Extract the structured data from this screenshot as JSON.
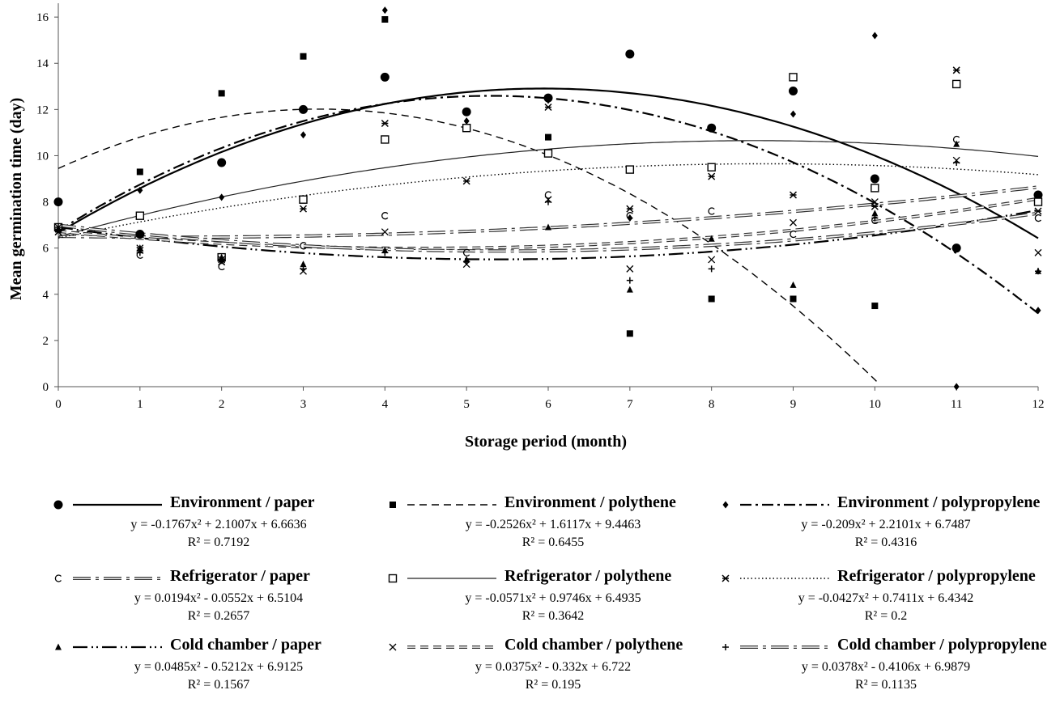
{
  "chart_data": {
    "type": "scatter",
    "xlabel": "Storage period (month)",
    "ylabel": "Mean germination time (day)",
    "xlim": [
      0,
      12
    ],
    "ylim": [
      0,
      16.6
    ],
    "x_ticks": [
      "0",
      "1",
      "2",
      "3",
      "4",
      "5",
      "6",
      "7",
      "8",
      "9",
      "10",
      "11",
      "12"
    ],
    "y_ticks": [
      "0",
      "2",
      "4",
      "6",
      "8",
      "10",
      "12",
      "14",
      "16"
    ],
    "grid": false,
    "legend_position": "bottom",
    "series": [
      {
        "name": "Environment / paper",
        "marker": "circle",
        "line": "solid",
        "lineWeight": "heavy",
        "points": [
          [
            0,
            8.0
          ],
          [
            1,
            6.6
          ],
          [
            2,
            9.7
          ],
          [
            3,
            12.0
          ],
          [
            4,
            13.4
          ],
          [
            5,
            11.9
          ],
          [
            6,
            12.5
          ],
          [
            7,
            14.4
          ],
          [
            8,
            11.2
          ],
          [
            9,
            12.8
          ],
          [
            10,
            9.0
          ],
          [
            11,
            6.0
          ],
          [
            12,
            8.3
          ]
        ],
        "equation": "y = -0.1767x² + 2.1007x + 6.6636",
        "r2": "R² = 0.7192",
        "coef": [
          -0.1767,
          2.1007,
          6.6636
        ]
      },
      {
        "name": "Environment / polythene",
        "marker": "square-filled",
        "line": "dashed",
        "points": [
          [
            0,
            8.0
          ],
          [
            1,
            9.3
          ],
          [
            2,
            12.7
          ],
          [
            3,
            14.3
          ],
          [
            4,
            15.9
          ],
          [
            5,
            11.2
          ],
          [
            6,
            10.8
          ],
          [
            7,
            2.3
          ],
          [
            8,
            3.8
          ],
          [
            9,
            3.8
          ],
          [
            10,
            3.5
          ]
        ],
        "equation": "y = -0.2526x² + 1.6117x + 9.4463",
        "r2": "R² = 0.6455",
        "coef": [
          -0.2526,
          1.6117,
          9.4463
        ]
      },
      {
        "name": "Environment / polypropylene",
        "marker": "diamond",
        "line": "dash-dot",
        "lineWeight": "heavy",
        "points": [
          [
            0,
            6.9
          ],
          [
            1,
            8.5
          ],
          [
            2,
            8.2
          ],
          [
            3,
            10.9
          ],
          [
            4,
            16.3
          ],
          [
            5,
            11.5
          ],
          [
            6,
            12.4
          ],
          [
            7,
            7.3
          ],
          [
            8,
            11.2
          ],
          [
            9,
            11.8
          ],
          [
            10,
            15.2
          ],
          [
            11,
            0.0
          ],
          [
            12,
            3.3
          ]
        ],
        "equation": "y = -0.209x² + 2.2101x + 6.7487",
        "r2": "R² = 0.4316",
        "coef": [
          -0.209,
          2.2101,
          6.7487
        ]
      },
      {
        "name": "Refrigerator / paper",
        "marker": "open-c",
        "line": "double-dash-dot",
        "points": [
          [
            0,
            6.8
          ],
          [
            1,
            5.7
          ],
          [
            2,
            5.2
          ],
          [
            3,
            6.1
          ],
          [
            4,
            7.4
          ],
          [
            5,
            5.8
          ],
          [
            6,
            8.3
          ],
          [
            7,
            7.4
          ],
          [
            8,
            7.6
          ],
          [
            9,
            6.6
          ],
          [
            10,
            7.2
          ],
          [
            11,
            10.7
          ],
          [
            12,
            7.3
          ]
        ],
        "equation": "y = 0.0194x² - 0.0552x + 6.5104",
        "r2": "R² = 0.2657",
        "coef": [
          0.0194,
          -0.0552,
          6.5104
        ]
      },
      {
        "name": "Refrigerator / polythene",
        "marker": "square-open",
        "line": "thin-solid",
        "points": [
          [
            0,
            6.9
          ],
          [
            1,
            7.4
          ],
          [
            2,
            5.6
          ],
          [
            3,
            8.1
          ],
          [
            4,
            10.7
          ],
          [
            5,
            11.2
          ],
          [
            6,
            10.1
          ],
          [
            7,
            9.4
          ],
          [
            8,
            9.5
          ],
          [
            9,
            13.4
          ],
          [
            10,
            8.6
          ],
          [
            11,
            13.1
          ],
          [
            12,
            8.0
          ]
        ],
        "equation": "y = -0.0571x² + 0.9746x + 6.4935",
        "r2": "R² = 0.3642",
        "coef": [
          -0.0571,
          0.9746,
          6.4935
        ]
      },
      {
        "name": "Refrigerator / polypropylene",
        "marker": "star",
        "line": "dotted",
        "points": [
          [
            0,
            6.7
          ],
          [
            1,
            5.9
          ],
          [
            2,
            5.4
          ],
          [
            3,
            7.7
          ],
          [
            4,
            11.4
          ],
          [
            5,
            8.9
          ],
          [
            6,
            12.1
          ],
          [
            7,
            7.7
          ],
          [
            8,
            9.1
          ],
          [
            9,
            8.3
          ],
          [
            10,
            7.8
          ],
          [
            11,
            13.7
          ],
          [
            12,
            7.6
          ]
        ],
        "equation": "y = -0.0427x² + 0.7411x + 6.4342",
        "r2": "R² = 0.2",
        "coef": [
          -0.0427,
          0.7411,
          6.4342
        ]
      },
      {
        "name": "Cold chamber / paper",
        "marker": "triangle",
        "line": "long-dash-dot-dot",
        "lineWeight": "heavy",
        "points": [
          [
            0,
            6.8
          ],
          [
            1,
            6.0
          ],
          [
            2,
            5.6
          ],
          [
            3,
            5.3
          ],
          [
            4,
            5.9
          ],
          [
            5,
            5.5
          ],
          [
            6,
            6.9
          ],
          [
            7,
            4.2
          ],
          [
            8,
            6.4
          ],
          [
            9,
            4.4
          ],
          [
            10,
            7.5
          ],
          [
            11,
            10.5
          ],
          [
            12,
            5.0
          ]
        ],
        "equation": "y = 0.0485x² - 0.5212x + 6.9125",
        "r2": "R² = 0.1567",
        "coef": [
          0.0485,
          -0.5212,
          6.9125
        ]
      },
      {
        "name": "Cold chamber / polythene",
        "marker": "x",
        "line": "double-dashed",
        "points": [
          [
            0,
            6.9
          ],
          [
            1,
            6.0
          ],
          [
            2,
            5.5
          ],
          [
            3,
            5.0
          ],
          [
            4,
            6.7
          ],
          [
            5,
            5.3
          ],
          [
            6,
            8.1
          ],
          [
            7,
            5.1
          ],
          [
            8,
            5.5
          ],
          [
            9,
            7.1
          ],
          [
            10,
            8.0
          ],
          [
            11,
            9.8
          ],
          [
            12,
            5.8
          ]
        ],
        "equation": "y = 0.0375x² - 0.332x + 6.722",
        "r2": "R² = 0.195",
        "coef": [
          0.0375,
          -0.332,
          6.722
        ]
      },
      {
        "name": "Cold chamber / polypropylene",
        "marker": "plus",
        "line": "double-dash-dot",
        "points": [
          [
            0,
            6.9
          ],
          [
            1,
            5.8
          ],
          [
            2,
            5.5
          ],
          [
            3,
            5.1
          ],
          [
            4,
            5.8
          ],
          [
            5,
            5.4
          ],
          [
            6,
            8.0
          ],
          [
            7,
            4.6
          ],
          [
            8,
            5.1
          ],
          [
            9,
            3.8
          ],
          [
            10,
            7.3
          ],
          [
            11,
            9.7
          ],
          [
            12,
            5.0
          ]
        ],
        "equation": "y = 0.0378x² - 0.4106x + 6.9879",
        "r2": "R² = 0.1135",
        "coef": [
          0.0378,
          -0.4106,
          6.9879
        ]
      }
    ]
  }
}
